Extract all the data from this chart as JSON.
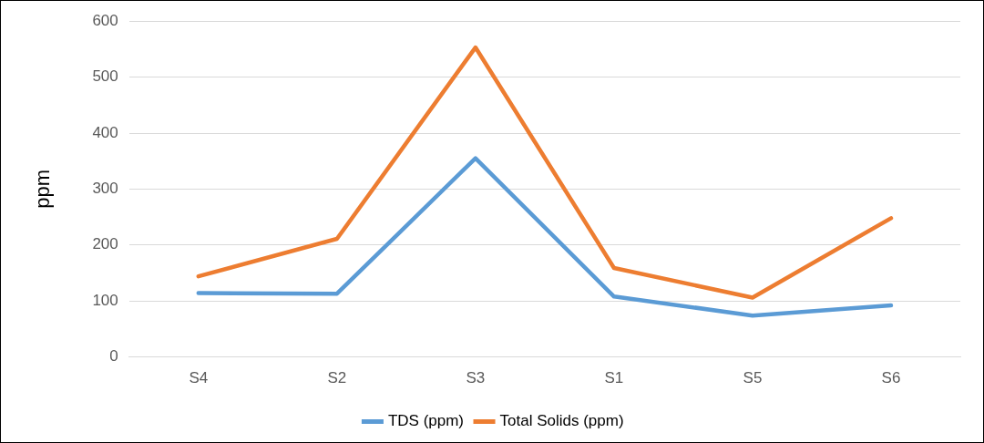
{
  "chart_data": {
    "type": "line",
    "ylabel": "ppm",
    "categories": [
      "S4",
      "S2",
      "S3",
      "S1",
      "S5",
      "S6"
    ],
    "series": [
      {
        "name": "TDS (ppm)",
        "color": "#5b9bd5",
        "values": [
          114,
          113,
          355,
          108,
          74,
          92
        ]
      },
      {
        "name": "Total Solids (ppm)",
        "color": "#ed7d31",
        "values": [
          144,
          211,
          553,
          159,
          106,
          248
        ]
      }
    ],
    "ylim": [
      0,
      600
    ],
    "yticks": [
      0,
      100,
      200,
      300,
      400,
      500,
      600
    ],
    "grid": "y",
    "legend": "bottom",
    "marker": "none",
    "line_style": "solid"
  }
}
